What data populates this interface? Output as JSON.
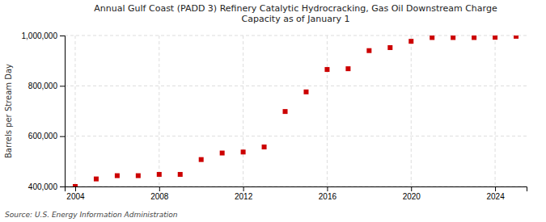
{
  "chart_data": {
    "type": "scatter",
    "title": "Annual Gulf Coast (PADD 3) Refinery Catalytic Hydrocracking, Gas Oil Downstream Charge\nCapacity as of January 1",
    "ylabel": "Barrels per Stream Day",
    "annotations": [
      "Source: U.S. Energy Information Administration"
    ],
    "x": [
      2004,
      2005,
      2006,
      2007,
      2008,
      2009,
      2010,
      2011,
      2012,
      2013,
      2014,
      2015,
      2016,
      2017,
      2018,
      2019,
      2020,
      2021,
      2022,
      2023,
      2024,
      2025
    ],
    "values": [
      400000,
      430000,
      443000,
      443000,
      448000,
      448000,
      507000,
      533000,
      537000,
      557000,
      698000,
      776000,
      865000,
      868000,
      940000,
      952000,
      977000,
      992000,
      992000,
      992000,
      993000,
      997000
    ],
    "color": "#cc0000",
    "marker": "square",
    "xlim": [
      2003.5,
      2025.5
    ],
    "ylim": [
      400000,
      1000000
    ],
    "xticks": [
      2004,
      2008,
      2012,
      2016,
      2020,
      2024
    ],
    "yticks": [
      {
        "value": 400000,
        "label": "400,000"
      },
      {
        "value": 600000,
        "label": "600,000"
      },
      {
        "value": 800000,
        "label": "800,000"
      },
      {
        "value": 1000000,
        "label": "1,000,000"
      }
    ],
    "grid": true
  }
}
